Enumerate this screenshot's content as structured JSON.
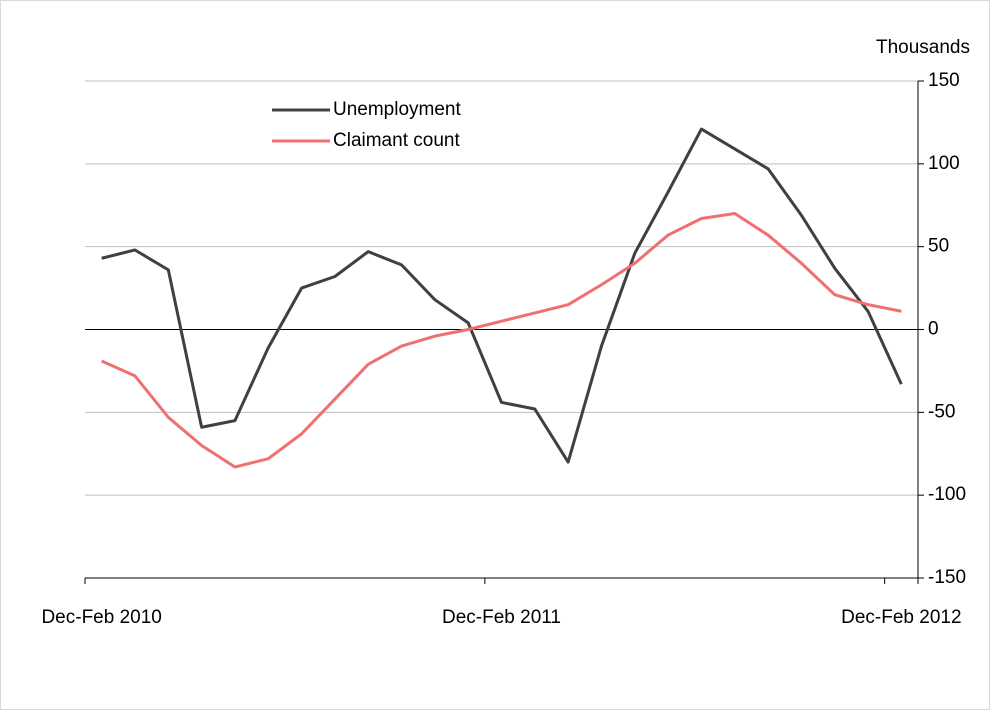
{
  "chart_data": {
    "type": "line",
    "y_axis_label": "Thousands",
    "categories": [
      "Dec-Feb 2010",
      null,
      null,
      null,
      null,
      null,
      null,
      null,
      null,
      null,
      null,
      null,
      "Dec-Feb 2011",
      null,
      null,
      null,
      null,
      null,
      null,
      null,
      null,
      null,
      null,
      null,
      "Dec-Feb 2012"
    ],
    "series": [
      {
        "name": "Unemployment",
        "color": "#404040",
        "values": [
          43,
          48,
          36,
          -59,
          -55,
          -11,
          25,
          32,
          47,
          39,
          18,
          4,
          -44,
          -48,
          -80,
          -10,
          46,
          83,
          121,
          109,
          97,
          69,
          37,
          11,
          -33
        ]
      },
      {
        "name": "Claimant count",
        "color": "#f07070",
        "values": [
          -19,
          -28,
          -53,
          -70,
          -83,
          -78,
          -63,
          -42,
          -21,
          -10,
          -4,
          0,
          5,
          10,
          15,
          27,
          40,
          57,
          67,
          70,
          57,
          40,
          21,
          15,
          11
        ]
      }
    ],
    "ylim": [
      -150,
      150
    ],
    "yticks": [
      -150,
      -100,
      -50,
      0,
      50,
      100,
      150
    ],
    "grid": true
  }
}
